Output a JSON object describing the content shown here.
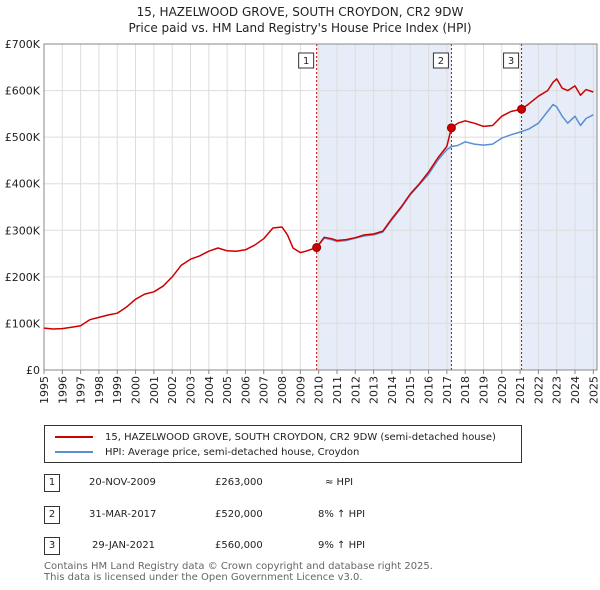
{
  "title": "15, HAZELWOOD GROVE, SOUTH CROYDON, CR2 9DW",
  "subtitle": "Price paid vs. HM Land Registry's House Price Index (HPI)",
  "colors": {
    "property": "#cc0000",
    "hpi": "#5b8fd0",
    "shade": "#dde6f5",
    "grid": "#dddddd",
    "vline": "#cc0000"
  },
  "chart_data": {
    "type": "line",
    "xlim": [
      1995.0,
      2025.2
    ],
    "ylim": [
      0,
      700000
    ],
    "x_ticks": [
      1995,
      1996,
      1997,
      1998,
      1999,
      2000,
      2001,
      2002,
      2003,
      2004,
      2005,
      2006,
      2007,
      2008,
      2009,
      2010,
      2011,
      2012,
      2013,
      2014,
      2015,
      2016,
      2017,
      2018,
      2019,
      2020,
      2021,
      2022,
      2023,
      2024,
      2025
    ],
    "y_ticks": [
      {
        "value": 0,
        "label": "£0"
      },
      {
        "value": 100000,
        "label": "£100K"
      },
      {
        "value": 200000,
        "label": "£200K"
      },
      {
        "value": 300000,
        "label": "£300K"
      },
      {
        "value": 400000,
        "label": "£400K"
      },
      {
        "value": 500000,
        "label": "£500K"
      },
      {
        "value": 600000,
        "label": "£600K"
      },
      {
        "value": 700000,
        "label": "£700K"
      }
    ],
    "series": [
      {
        "name": "15, HAZELWOOD GROVE, SOUTH CROYDON, CR2 9DW (semi-detached house)",
        "color": "#cc0000",
        "x": [
          1995.0,
          1995.5,
          1996.0,
          1996.5,
          1997.0,
          1997.5,
          1998.0,
          1998.5,
          1999.0,
          1999.5,
          2000.0,
          2000.5,
          2001.0,
          2001.5,
          2002.0,
          2002.5,
          2003.0,
          2003.5,
          2004.0,
          2004.5,
          2005.0,
          2005.5,
          2006.0,
          2006.5,
          2007.0,
          2007.5,
          2008.0,
          2008.3,
          2008.6,
          2009.0,
          2009.3,
          2009.89,
          2010.3,
          2010.7,
          2011.0,
          2011.5,
          2012.0,
          2012.5,
          2013.0,
          2013.5,
          2014.0,
          2014.5,
          2015.0,
          2015.5,
          2016.0,
          2016.5,
          2017.0,
          2017.25,
          2017.6,
          2018.0,
          2018.5,
          2019.0,
          2019.5,
          2020.0,
          2020.5,
          2021.08,
          2021.5,
          2022.0,
          2022.5,
          2022.8,
          2023.0,
          2023.3,
          2023.6,
          2024.0,
          2024.3,
          2024.6,
          2025.0
        ],
        "values": [
          90000,
          88000,
          89000,
          92000,
          95000,
          108000,
          113000,
          118000,
          122000,
          135000,
          152000,
          163000,
          168000,
          180000,
          200000,
          225000,
          238000,
          245000,
          255000,
          262000,
          256000,
          255000,
          258000,
          268000,
          282000,
          305000,
          307000,
          290000,
          262000,
          252000,
          255000,
          263000,
          285000,
          282000,
          278000,
          280000,
          284000,
          290000,
          292000,
          298000,
          325000,
          350000,
          378000,
          400000,
          425000,
          455000,
          480000,
          520000,
          530000,
          535000,
          530000,
          523000,
          525000,
          545000,
          555000,
          560000,
          572000,
          588000,
          600000,
          618000,
          625000,
          605000,
          600000,
          610000,
          590000,
          602000,
          597000
        ]
      },
      {
        "name": "HPI: Average price, semi-detached house, Croydon",
        "color": "#5b8fd0",
        "x": [
          2009.89,
          2010.3,
          2010.7,
          2011.0,
          2011.5,
          2012.0,
          2012.5,
          2013.0,
          2013.5,
          2014.0,
          2014.5,
          2015.0,
          2015.5,
          2016.0,
          2016.5,
          2017.0,
          2017.25,
          2017.6,
          2018.0,
          2018.5,
          2019.0,
          2019.5,
          2020.0,
          2020.5,
          2021.08,
          2021.5,
          2022.0,
          2022.5,
          2022.8,
          2023.0,
          2023.3,
          2023.6,
          2024.0,
          2024.3,
          2024.6,
          2025.0
        ],
        "values": [
          263000,
          283000,
          280000,
          276000,
          278000,
          283000,
          288000,
          290000,
          296000,
          323000,
          348000,
          376000,
          398000,
          420000,
          450000,
          473000,
          480000,
          482000,
          490000,
          485000,
          483000,
          485000,
          498000,
          505000,
          512000,
          518000,
          530000,
          555000,
          570000,
          565000,
          545000,
          530000,
          545000,
          525000,
          540000,
          548000
        ]
      }
    ],
    "sales": [
      {
        "num": "1",
        "x": 2009.89,
        "value": 263000
      },
      {
        "num": "2",
        "x": 2017.25,
        "value": 520000
      },
      {
        "num": "3",
        "x": 2021.08,
        "value": 560000
      }
    ],
    "shaded_ranges": [
      [
        2009.89,
        2017.25
      ],
      [
        2021.08,
        2025.2
      ]
    ]
  },
  "legend": {
    "property": "15, HAZELWOOD GROVE, SOUTH CROYDON, CR2 9DW (semi-detached house)",
    "hpi": "HPI: Average price, semi-detached house, Croydon"
  },
  "transactions": [
    {
      "num": "1",
      "date": "20-NOV-2009",
      "price": "£263,000",
      "hpi": "≈ HPI"
    },
    {
      "num": "2",
      "date": "31-MAR-2017",
      "price": "£520,000",
      "hpi": "8% ↑ HPI"
    },
    {
      "num": "3",
      "date": "29-JAN-2021",
      "price": "£560,000",
      "hpi": "9% ↑ HPI"
    }
  ],
  "footer": {
    "line1": "Contains HM Land Registry data © Crown copyright and database right 2025.",
    "line2": "This data is licensed under the Open Government Licence v3.0."
  }
}
